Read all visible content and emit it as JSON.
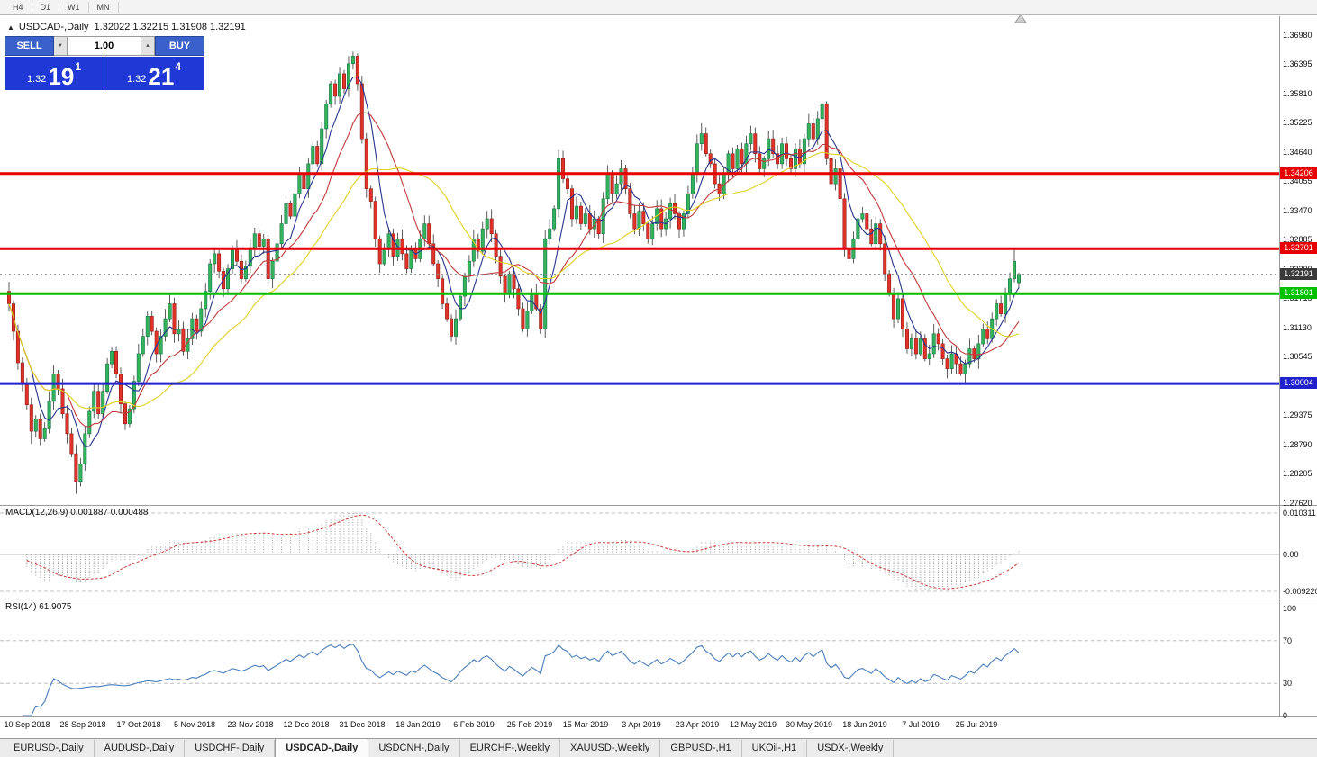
{
  "toolbar": {
    "timeframes": [
      "H4",
      "D1",
      "W1",
      "MN"
    ]
  },
  "chart_header": {
    "collapse_icon": "▲",
    "symbol_title": "USDCAD-,Daily",
    "ohlc": "1.32022 1.32215 1.31908 1.32191"
  },
  "trade_panel": {
    "sell_label": "SELL",
    "buy_label": "BUY",
    "volume": "1.00",
    "spinner_down_icon": "▼",
    "spinner_up_icon": "▲",
    "bid": {
      "prefix": "1.32",
      "big": "19",
      "sup": "1"
    },
    "ask": {
      "prefix": "1.32",
      "big": "21",
      "sup": "4"
    },
    "button_color": "#3a60cc",
    "quote_color": "#1f38d6"
  },
  "levels": [
    {
      "price": 1.34206,
      "label": "1.34206",
      "color": "#e60000",
      "width": 3
    },
    {
      "price": 1.32701,
      "label": "1.32701",
      "color": "#e60000",
      "width": 3
    },
    {
      "price": 1.31801,
      "label": "1.31801",
      "color": "#00c000",
      "width": 3
    },
    {
      "price": 1.30004,
      "label": "1.30004",
      "color": "#2222cc",
      "width": 3
    }
  ],
  "current_price": {
    "value": 1.32191,
    "label": "1.32191",
    "badge_color": "#3a3a3a"
  },
  "price_scale": {
    "labels": [
      "1.36980",
      "1.36395",
      "1.35810",
      "1.35225",
      "1.34640",
      "1.34055",
      "1.33470",
      "1.32885",
      "1.32300",
      "1.31715",
      "1.31130",
      "1.30545",
      "1.29960",
      "1.29375",
      "1.28790",
      "1.28205",
      "1.27620"
    ]
  },
  "macd_pane": {
    "label": "MACD(12,26,9) 0.001887 0.000488",
    "values": {
      "macd": "0.001887",
      "signal": "0.000488"
    },
    "axis": [
      "0.010311",
      "0.00",
      "-0.0092203"
    ],
    "params": {
      "fast": 12,
      "slow": 26,
      "signal": 9
    },
    "colors": {
      "histogram": "#9a9a9a",
      "signal": "#cc3b3b"
    }
  },
  "rsi_pane": {
    "label": "RSI(14) 61.9075",
    "value": "61.9075",
    "period": 14,
    "axis": [
      "100",
      "70",
      "30",
      "0"
    ],
    "levels": [
      70,
      30
    ],
    "color": "#4a7ebb"
  },
  "tabs": [
    {
      "label": "EURUSD-,Daily",
      "active": false
    },
    {
      "label": "AUDUSD-,Daily",
      "active": false
    },
    {
      "label": "USDCHF-,Daily",
      "active": false
    },
    {
      "label": "USDCAD-,Daily",
      "active": true
    },
    {
      "label": "USDCNH-,Daily",
      "active": false
    },
    {
      "label": "EURCHF-,Weekly",
      "active": false
    },
    {
      "label": "XAUUSD-,Weekly",
      "active": false
    },
    {
      "label": "GBPUSD-,H1",
      "active": false
    },
    {
      "label": "UKOil-,H1",
      "active": false
    },
    {
      "label": "USDX-,Weekly",
      "active": false
    }
  ],
  "chart_data": {
    "type": "candlestick",
    "symbol": "USDCAD",
    "period": "Daily",
    "title": "USDCAD-,Daily",
    "y_range": [
      1.276,
      1.3735
    ],
    "candle_up": "#35b35c",
    "candle_down": "#e03228",
    "ma": [
      {
        "period": 6,
        "color": "#27348b"
      },
      {
        "period": 14,
        "color": "#c03a3a"
      },
      {
        "period": 28,
        "color": "#e0d020"
      }
    ],
    "x_labels": [
      "10 Sep 2018",
      "28 Sep 2018",
      "17 Oct 2018",
      "5 Nov 2018",
      "23 Nov 2018",
      "12 Dec 2018",
      "31 Dec 2018",
      "18 Jan 2019",
      "6 Feb 2019",
      "25 Feb 2019",
      "15 Mar 2019",
      "3 Apr 2019",
      "23 Apr 2019",
      "12 May 2019",
      "30 May 2019",
      "18 Jun 2019",
      "7 Jul 2019",
      "25 Jul 2019"
    ],
    "closes": [
      1.316,
      1.3105,
      1.3042,
      1.3,
      1.2958,
      1.2905,
      1.293,
      1.289,
      1.291,
      1.2965,
      1.302,
      1.299,
      1.294,
      1.29,
      1.286,
      1.2805,
      1.284,
      1.29,
      1.2945,
      1.2985,
      1.294,
      1.2985,
      1.304,
      1.3065,
      1.302,
      1.296,
      1.292,
      1.295,
      1.3005,
      1.306,
      1.3095,
      1.3135,
      1.3105,
      1.306,
      1.3095,
      1.313,
      1.316,
      1.31,
      1.311,
      1.3065,
      1.309,
      1.313,
      1.3105,
      1.315,
      1.3185,
      1.324,
      1.326,
      1.3225,
      1.319,
      1.323,
      1.327,
      1.3245,
      1.321,
      1.3235,
      1.327,
      1.33,
      1.3275,
      1.329,
      1.321,
      1.3245,
      1.328,
      1.332,
      1.336,
      1.3335,
      1.338,
      1.342,
      1.339,
      1.344,
      1.3475,
      1.344,
      1.351,
      1.356,
      1.36,
      1.3575,
      1.362,
      1.359,
      1.364,
      1.3655,
      1.36,
      1.349,
      1.339,
      1.3365,
      1.329,
      1.324,
      1.327,
      1.33,
      1.3255,
      1.329,
      1.326,
      1.323,
      1.327,
      1.325,
      1.329,
      1.332,
      1.328,
      1.324,
      1.321,
      1.316,
      1.313,
      1.3095,
      1.313,
      1.3175,
      1.3215,
      1.3245,
      1.329,
      1.3265,
      1.331,
      1.333,
      1.33,
      1.3255,
      1.3215,
      1.318,
      1.322,
      1.319,
      1.315,
      1.311,
      1.3145,
      1.318,
      1.315,
      1.311,
      1.329,
      1.331,
      1.335,
      1.345,
      1.341,
      1.339,
      1.333,
      1.3355,
      1.332,
      1.334,
      1.331,
      1.333,
      1.33,
      1.337,
      1.342,
      1.338,
      1.34,
      1.343,
      1.339,
      1.334,
      1.331,
      1.3345,
      1.332,
      1.329,
      1.332,
      1.335,
      1.331,
      1.333,
      1.336,
      1.334,
      1.331,
      1.334,
      1.338,
      1.342,
      1.348,
      1.35,
      1.346,
      1.344,
      1.34,
      1.338,
      1.342,
      1.346,
      1.343,
      1.347,
      1.344,
      1.348,
      1.35,
      1.346,
      1.343,
      1.345,
      1.349,
      1.346,
      1.344,
      1.348,
      1.345,
      1.343,
      1.347,
      1.344,
      1.349,
      1.352,
      1.349,
      1.353,
      1.356,
      1.345,
      1.34,
      1.343,
      1.337,
      1.327,
      1.325,
      1.329,
      1.333,
      1.334,
      1.331,
      1.328,
      1.332,
      1.328,
      1.322,
      1.318,
      1.313,
      1.317,
      1.311,
      1.307,
      1.309,
      1.306,
      1.309,
      1.305,
      1.306,
      1.31,
      1.308,
      1.305,
      1.303,
      1.306,
      1.304,
      1.302,
      1.304,
      1.307,
      1.305,
      1.308,
      1.311,
      1.309,
      1.313,
      1.316,
      1.314,
      1.318,
      1.321,
      1.3245,
      1.3219
    ],
    "wick_overrides": {
      "5": {
        "l": 1.288
      },
      "15": {
        "l": 1.278
      },
      "77": {
        "h": 1.3664
      },
      "123": {
        "h": 1.3467
      },
      "155": {
        "h": 1.3521
      },
      "182": {
        "h": 1.3565
      },
      "213": {
        "l": 1.3016
      },
      "225": {
        "h": 1.327
      },
      "226": {
        "o": 1.3202,
        "h": 1.3222,
        "l": 1.3191
      }
    }
  }
}
